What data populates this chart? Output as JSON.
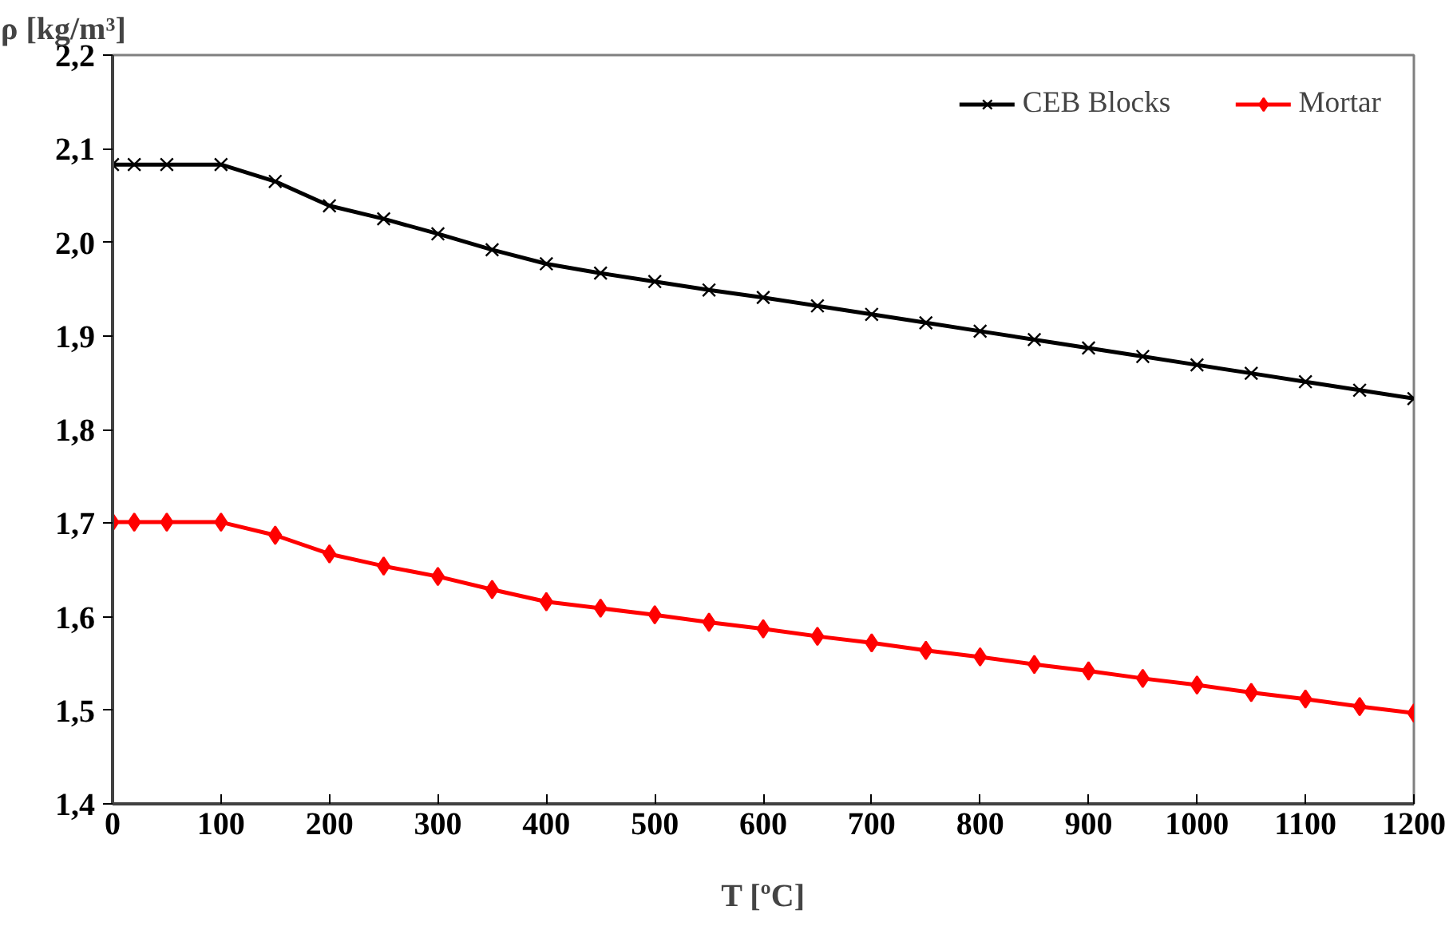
{
  "chart_data": {
    "type": "line",
    "xlabel": "T [ºC]",
    "ylabel": "ρ [kg/m³]",
    "x": [
      0,
      20,
      50,
      100,
      150,
      200,
      250,
      300,
      350,
      400,
      450,
      500,
      550,
      600,
      650,
      700,
      750,
      800,
      850,
      900,
      950,
      1000,
      1050,
      1100,
      1150,
      1200
    ],
    "series": [
      {
        "name": "CEB Blocks",
        "color": "#000000",
        "marker": "cross",
        "values": [
          2.083,
          2.083,
          2.083,
          2.083,
          2.065,
          2.039,
          2.025,
          2.009,
          1.992,
          1.977,
          1.967,
          1.958,
          1.949,
          1.941,
          1.932,
          1.923,
          1.914,
          1.905,
          1.896,
          1.887,
          1.878,
          1.869,
          1.86,
          1.851,
          1.842,
          1.833
        ]
      },
      {
        "name": "Mortar",
        "color": "#ff0000",
        "marker": "diamond",
        "values": [
          1.701,
          1.701,
          1.701,
          1.701,
          1.687,
          1.667,
          1.654,
          1.643,
          1.629,
          1.616,
          1.609,
          1.602,
          1.594,
          1.587,
          1.579,
          1.572,
          1.564,
          1.557,
          1.549,
          1.542,
          1.534,
          1.527,
          1.519,
          1.512,
          1.504,
          1.497
        ]
      }
    ],
    "xlim": [
      0,
      1200
    ],
    "xticks": [
      0,
      100,
      200,
      300,
      400,
      500,
      600,
      700,
      800,
      900,
      1000,
      1100,
      1200
    ],
    "ylim": [
      1.4,
      2.2
    ],
    "yticks": [
      {
        "value": 1.4,
        "label": "1,4"
      },
      {
        "value": 1.5,
        "label": "1,5"
      },
      {
        "value": 1.6,
        "label": "1,6"
      },
      {
        "value": 1.7,
        "label": "1,7"
      },
      {
        "value": 1.8,
        "label": "1,8"
      },
      {
        "value": 1.9,
        "label": "1,9"
      },
      {
        "value": 2.0,
        "label": "2,0"
      },
      {
        "value": 2.1,
        "label": "2,1"
      },
      {
        "value": 2.2,
        "label": "2,2"
      }
    ],
    "grid": false,
    "legend": "top right",
    "line_style": "solid"
  }
}
